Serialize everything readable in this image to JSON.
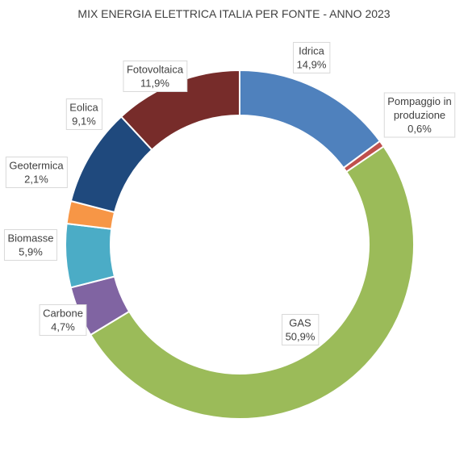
{
  "chart_data": {
    "type": "pie",
    "title": "MIX ENERGIA ELETTRICA ITALIA PER FONTE - ANNO 2023",
    "donut": true,
    "slices": [
      {
        "lines": [
          "Idrica"
        ],
        "value_label": "14,9%",
        "value": 14.9,
        "color": "#4f81bd"
      },
      {
        "lines": [
          "Pompaggio in",
          "produzione"
        ],
        "value_label": "0,6%",
        "value": 0.6,
        "color": "#c0504d"
      },
      {
        "lines": [
          "GAS"
        ],
        "value_label": "50,9%",
        "value": 50.9,
        "color": "#9bbb59"
      },
      {
        "lines": [
          "Carbone"
        ],
        "value_label": "4,7%",
        "value": 4.7,
        "color": "#8064a2"
      },
      {
        "lines": [
          "Biomasse"
        ],
        "value_label": "5,9%",
        "value": 5.9,
        "color": "#4bacc6"
      },
      {
        "lines": [
          "Geotermica"
        ],
        "value_label": "2,1%",
        "value": 2.1,
        "color": "#f79646"
      },
      {
        "lines": [
          "Eolica"
        ],
        "value_label": "9,1%",
        "value": 9.1,
        "color": "#1f497d"
      },
      {
        "lines": [
          "Fotovoltaica"
        ],
        "value_label": "11,9%",
        "value": 11.9,
        "color": "#772c2a"
      }
    ]
  }
}
